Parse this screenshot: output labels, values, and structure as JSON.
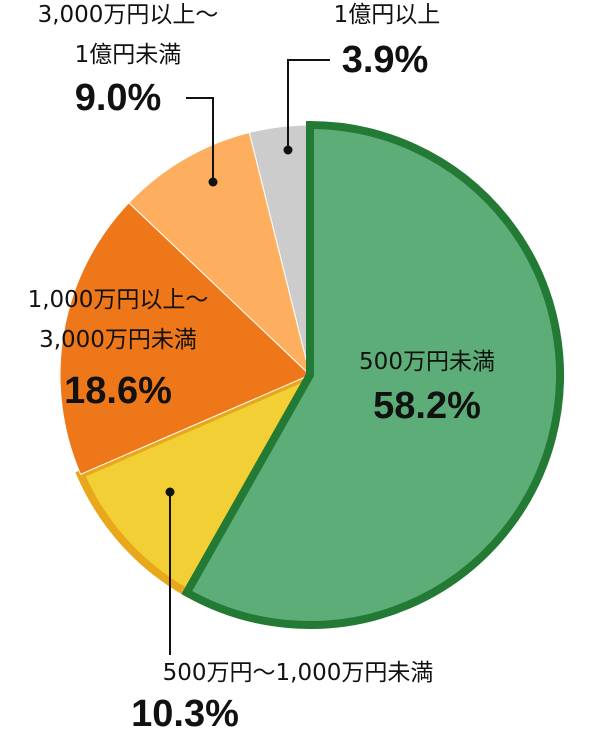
{
  "chart_data": {
    "type": "pie",
    "categories": [
      "500万円未満",
      "500万円～1,000万円未満",
      "1,000万円以上～\n3,000万円未満",
      "3,000万円以上～\n1億円未満",
      "1億円以上"
    ],
    "values": [
      58.2,
      10.3,
      18.6,
      9.0,
      3.9
    ],
    "value_labels": [
      "58.2%",
      "10.3%",
      "18.6%",
      "9.0%",
      "3.9%"
    ],
    "colors": [
      "#5cad77",
      "#f3cf36",
      "#ee7819",
      "#fdae5f",
      "#cccccc"
    ]
  }
}
